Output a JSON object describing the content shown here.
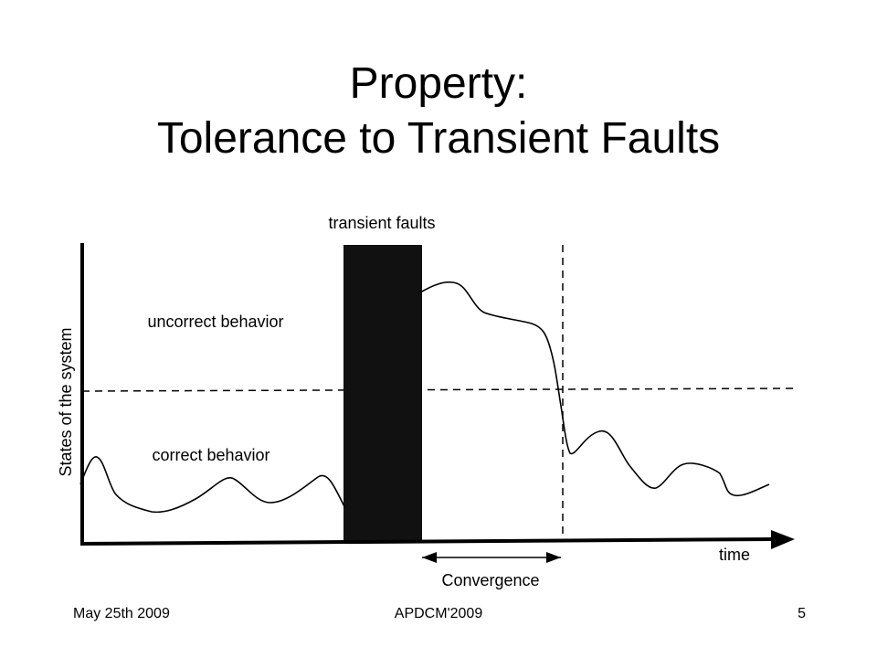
{
  "slide": {
    "title_line1": "Property:",
    "title_line2": "Tolerance to Transient Faults"
  },
  "diagram": {
    "faults_label": "transient faults",
    "incorrect_label": "uncorrect behavior",
    "correct_label": "correct behavior",
    "y_axis_label": "States of the system",
    "x_axis_label": "time",
    "convergence_label": "Convergence",
    "colors": {
      "ink": "#000000",
      "fault_block": "#111111",
      "background": "#ffffff"
    }
  },
  "footer": {
    "date": "May 25th 2009",
    "event": "APDCM'2009",
    "page_number": "5"
  }
}
